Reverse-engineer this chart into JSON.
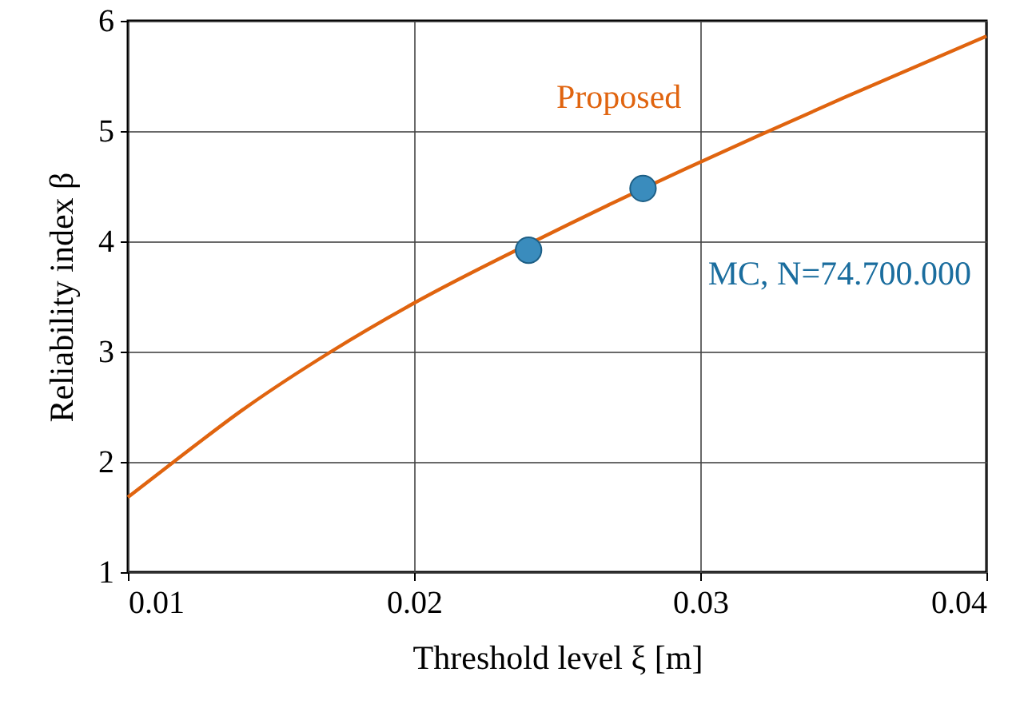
{
  "chart_data": {
    "type": "line",
    "xlabel": "Threshold level ξ [m]",
    "ylabel": "Reliability index β",
    "xlim": [
      0.01,
      0.04
    ],
    "ylim": [
      1,
      6
    ],
    "xticks": [
      0.01,
      0.02,
      0.03,
      0.04
    ],
    "yticks": [
      1,
      2,
      3,
      4,
      5,
      6
    ],
    "grid": true,
    "series": [
      {
        "name": "Proposed",
        "color": "#e0640f",
        "line_style": "solid",
        "x": [
          0.01,
          0.0116,
          0.014,
          0.0171,
          0.02,
          0.0242,
          0.0295,
          0.0324,
          0.035,
          0.04
        ],
        "values": [
          1.68,
          2,
          2.47,
          3,
          3.44,
          4,
          4.66,
          5,
          5.3,
          5.86
        ]
      },
      {
        "name": "MC, N=74.700.000",
        "type": "scatter",
        "marker": "circle",
        "color": "#3a8cbd",
        "x": [
          0.024,
          0.028
        ],
        "values": [
          3.92,
          4.48
        ]
      }
    ]
  }
}
